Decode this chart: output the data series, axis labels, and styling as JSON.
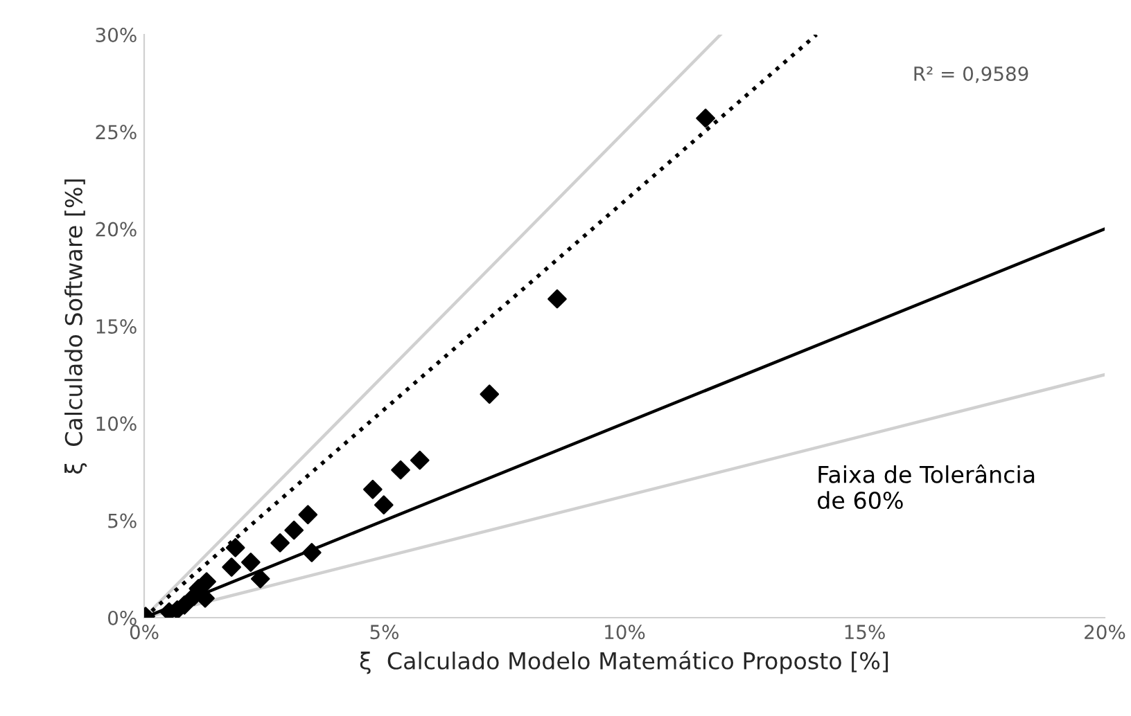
{
  "chart_data": {
    "type": "scatter",
    "xlabel": "ξ  Calculado Modelo Matemático Proposto [%]",
    "ylabel": "ξ  Calculado Software [%]",
    "xlim": [
      0,
      20
    ],
    "ylim": [
      0,
      30
    ],
    "xticks": [
      {
        "value": 0,
        "label": "0%"
      },
      {
        "value": 5,
        "label": "5%"
      },
      {
        "value": 10,
        "label": "10%"
      },
      {
        "value": 15,
        "label": "15%"
      },
      {
        "value": 20,
        "label": "20%"
      }
    ],
    "yticks": [
      {
        "value": 0,
        "label": "0%"
      },
      {
        "value": 5,
        "label": "5%"
      },
      {
        "value": 10,
        "label": "10%"
      },
      {
        "value": 15,
        "label": "15%"
      },
      {
        "value": 20,
        "label": "20%"
      },
      {
        "value": 25,
        "label": "25%"
      },
      {
        "value": 30,
        "label": "30%"
      }
    ],
    "grid": false,
    "legend": false,
    "annotations": [
      "R² = 0,9589",
      "Faixa de Tolerância\nde 60%"
    ],
    "series": [
      {
        "type": "line",
        "color": "#d0d0d0",
        "line_style": "solid",
        "x": [
          0,
          12
        ],
        "values": [
          0,
          30
        ]
      },
      {
        "type": "line",
        "color": "#d0d0d0",
        "line_style": "solid",
        "x": [
          0,
          20
        ],
        "values": [
          0,
          12.5
        ]
      },
      {
        "type": "line",
        "color": "#000000",
        "line_style": "solid",
        "x": [
          0,
          20
        ],
        "values": [
          0,
          20
        ]
      },
      {
        "type": "line",
        "color": "#000000",
        "line_style": "dotted",
        "x": [
          0,
          14
        ],
        "values": [
          0,
          30
        ]
      },
      {
        "color": "#000000",
        "marker": "diamond",
        "x": [
          0.03,
          0.52,
          0.69,
          0.84,
          1.04,
          1.13,
          1.27,
          1.3,
          1.82,
          1.9,
          2.22,
          2.42,
          2.83,
          3.12,
          3.41,
          3.49,
          4.76,
          4.99,
          5.34,
          5.74,
          7.19,
          8.6,
          11.69
        ],
        "values": [
          0.07,
          0.3,
          0.4,
          0.65,
          1.1,
          1.5,
          1.0,
          1.85,
          2.6,
          3.6,
          2.85,
          2.0,
          3.85,
          4.5,
          5.3,
          3.35,
          6.6,
          5.8,
          7.6,
          8.1,
          11.5,
          16.4,
          25.7
        ]
      }
    ]
  }
}
